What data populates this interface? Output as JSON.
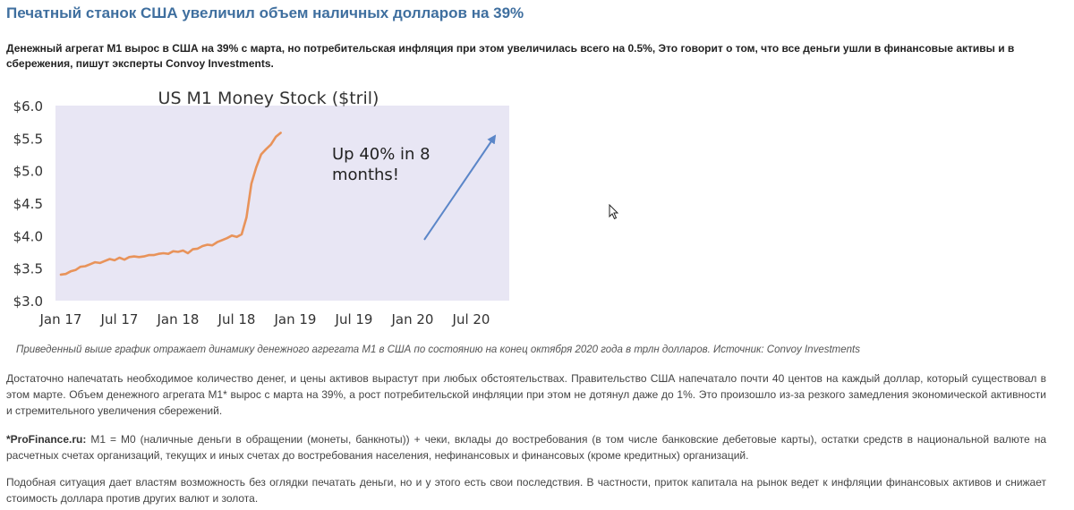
{
  "article": {
    "headline": "Печатный станок США увеличил объем наличных долларов на 39%",
    "lead": "Денежный агрегат М1 вырос в США на 39% с марта, но потребительская инфляция при этом увеличилась всего на 0.5%, Это говорит о том, что все деньги ушли в финансовые активы и в сбережения, пишут эксперты Convoy Investments.",
    "caption": "Приведенный выше график отражает динамику денежного агрегата М1 в США по состоянию на конец октября 2020 года в трлн долларов. Источник: Convoy Investments",
    "paragraph1": "Достаточно напечатать необходимое количество денег, и цены активов вырастут при любых обстоятельствах. Правительство США напечатало почти 40 центов на каждый доллар, который существовал в этом марте. Объем денежного агрегата М1* вырос с марта на 39%, а рост потребительской инфляции при этом не дотянул даже до 1%. Это произошло из-за резкого замедления экономической активности и стремительного увеличения сбережений.",
    "note_label": "*ProFinance.ru:",
    "note_text": " М1 = М0 (наличные деньги в обращении (монеты, банкноты)) + чеки, вклады до востребования (в том числе банковские дебетовые карты), остатки средств в национальной валюте на расчетных счетах организаций, текущих и иных счетах до востребования населения, нефинансовых и финансовых (кроме кредитных) организаций.",
    "paragraph3": "Подобная ситуация дает властям возможность без оглядки печатать деньги, но и у этого есть свои последствия. В частности, приток капитала на рынок ведет к инфляции финансовых активов и снижает стоимость доллара против других валют и золота."
  },
  "chart_data": {
    "type": "line",
    "title": "US M1 Money Stock ($tril)",
    "annotation": "Up 40% in 8 months!",
    "annotation_lines": [
      "Up 40% in 8",
      "months!"
    ],
    "ylim": [
      3.0,
      6.0
    ],
    "yticks": [
      "$6.0",
      "$5.5",
      "$5.0",
      "$4.5",
      "$4.0",
      "$3.5",
      "$3.0"
    ],
    "xticks": [
      "Jan 17",
      "Jul 17",
      "Jan 18",
      "Jul 18",
      "Jan 19",
      "Jul 19",
      "Jan 20",
      "Jul 20"
    ],
    "grid": false,
    "colors": {
      "line": "#e8935a",
      "arrow": "#5b86c8",
      "plot_bg": "#e8e6f4"
    },
    "series": [
      {
        "values": [
          [
            0,
            3.4
          ],
          [
            0.5,
            3.41
          ],
          [
            1,
            3.45
          ],
          [
            1.5,
            3.47
          ],
          [
            2,
            3.52
          ],
          [
            2.5,
            3.53
          ],
          [
            3,
            3.56
          ],
          [
            3.5,
            3.59
          ],
          [
            4,
            3.58
          ],
          [
            4.5,
            3.61
          ],
          [
            5,
            3.64
          ],
          [
            5.5,
            3.62
          ],
          [
            6,
            3.66
          ],
          [
            6.5,
            3.63
          ],
          [
            7,
            3.67
          ],
          [
            7.5,
            3.68
          ],
          [
            8,
            3.67
          ],
          [
            8.5,
            3.68
          ],
          [
            9,
            3.7
          ],
          [
            9.5,
            3.7
          ],
          [
            10,
            3.72
          ],
          [
            10.5,
            3.73
          ],
          [
            11,
            3.72
          ],
          [
            11.5,
            3.76
          ],
          [
            12,
            3.75
          ],
          [
            12.5,
            3.77
          ],
          [
            13,
            3.73
          ],
          [
            13.5,
            3.79
          ],
          [
            14,
            3.8
          ],
          [
            14.5,
            3.84
          ],
          [
            15,
            3.86
          ],
          [
            15.5,
            3.85
          ],
          [
            16,
            3.9
          ],
          [
            16.5,
            3.93
          ],
          [
            17,
            3.96
          ],
          [
            17.5,
            4.0
          ],
          [
            18,
            3.98
          ],
          [
            18.5,
            4.02
          ],
          [
            19,
            4.28
          ],
          [
            19.5,
            4.8
          ],
          [
            20,
            5.05
          ],
          [
            20.5,
            5.25
          ],
          [
            21,
            5.33
          ],
          [
            21.5,
            5.4
          ],
          [
            22,
            5.52
          ],
          [
            22.5,
            5.58
          ]
        ]
      }
    ]
  }
}
